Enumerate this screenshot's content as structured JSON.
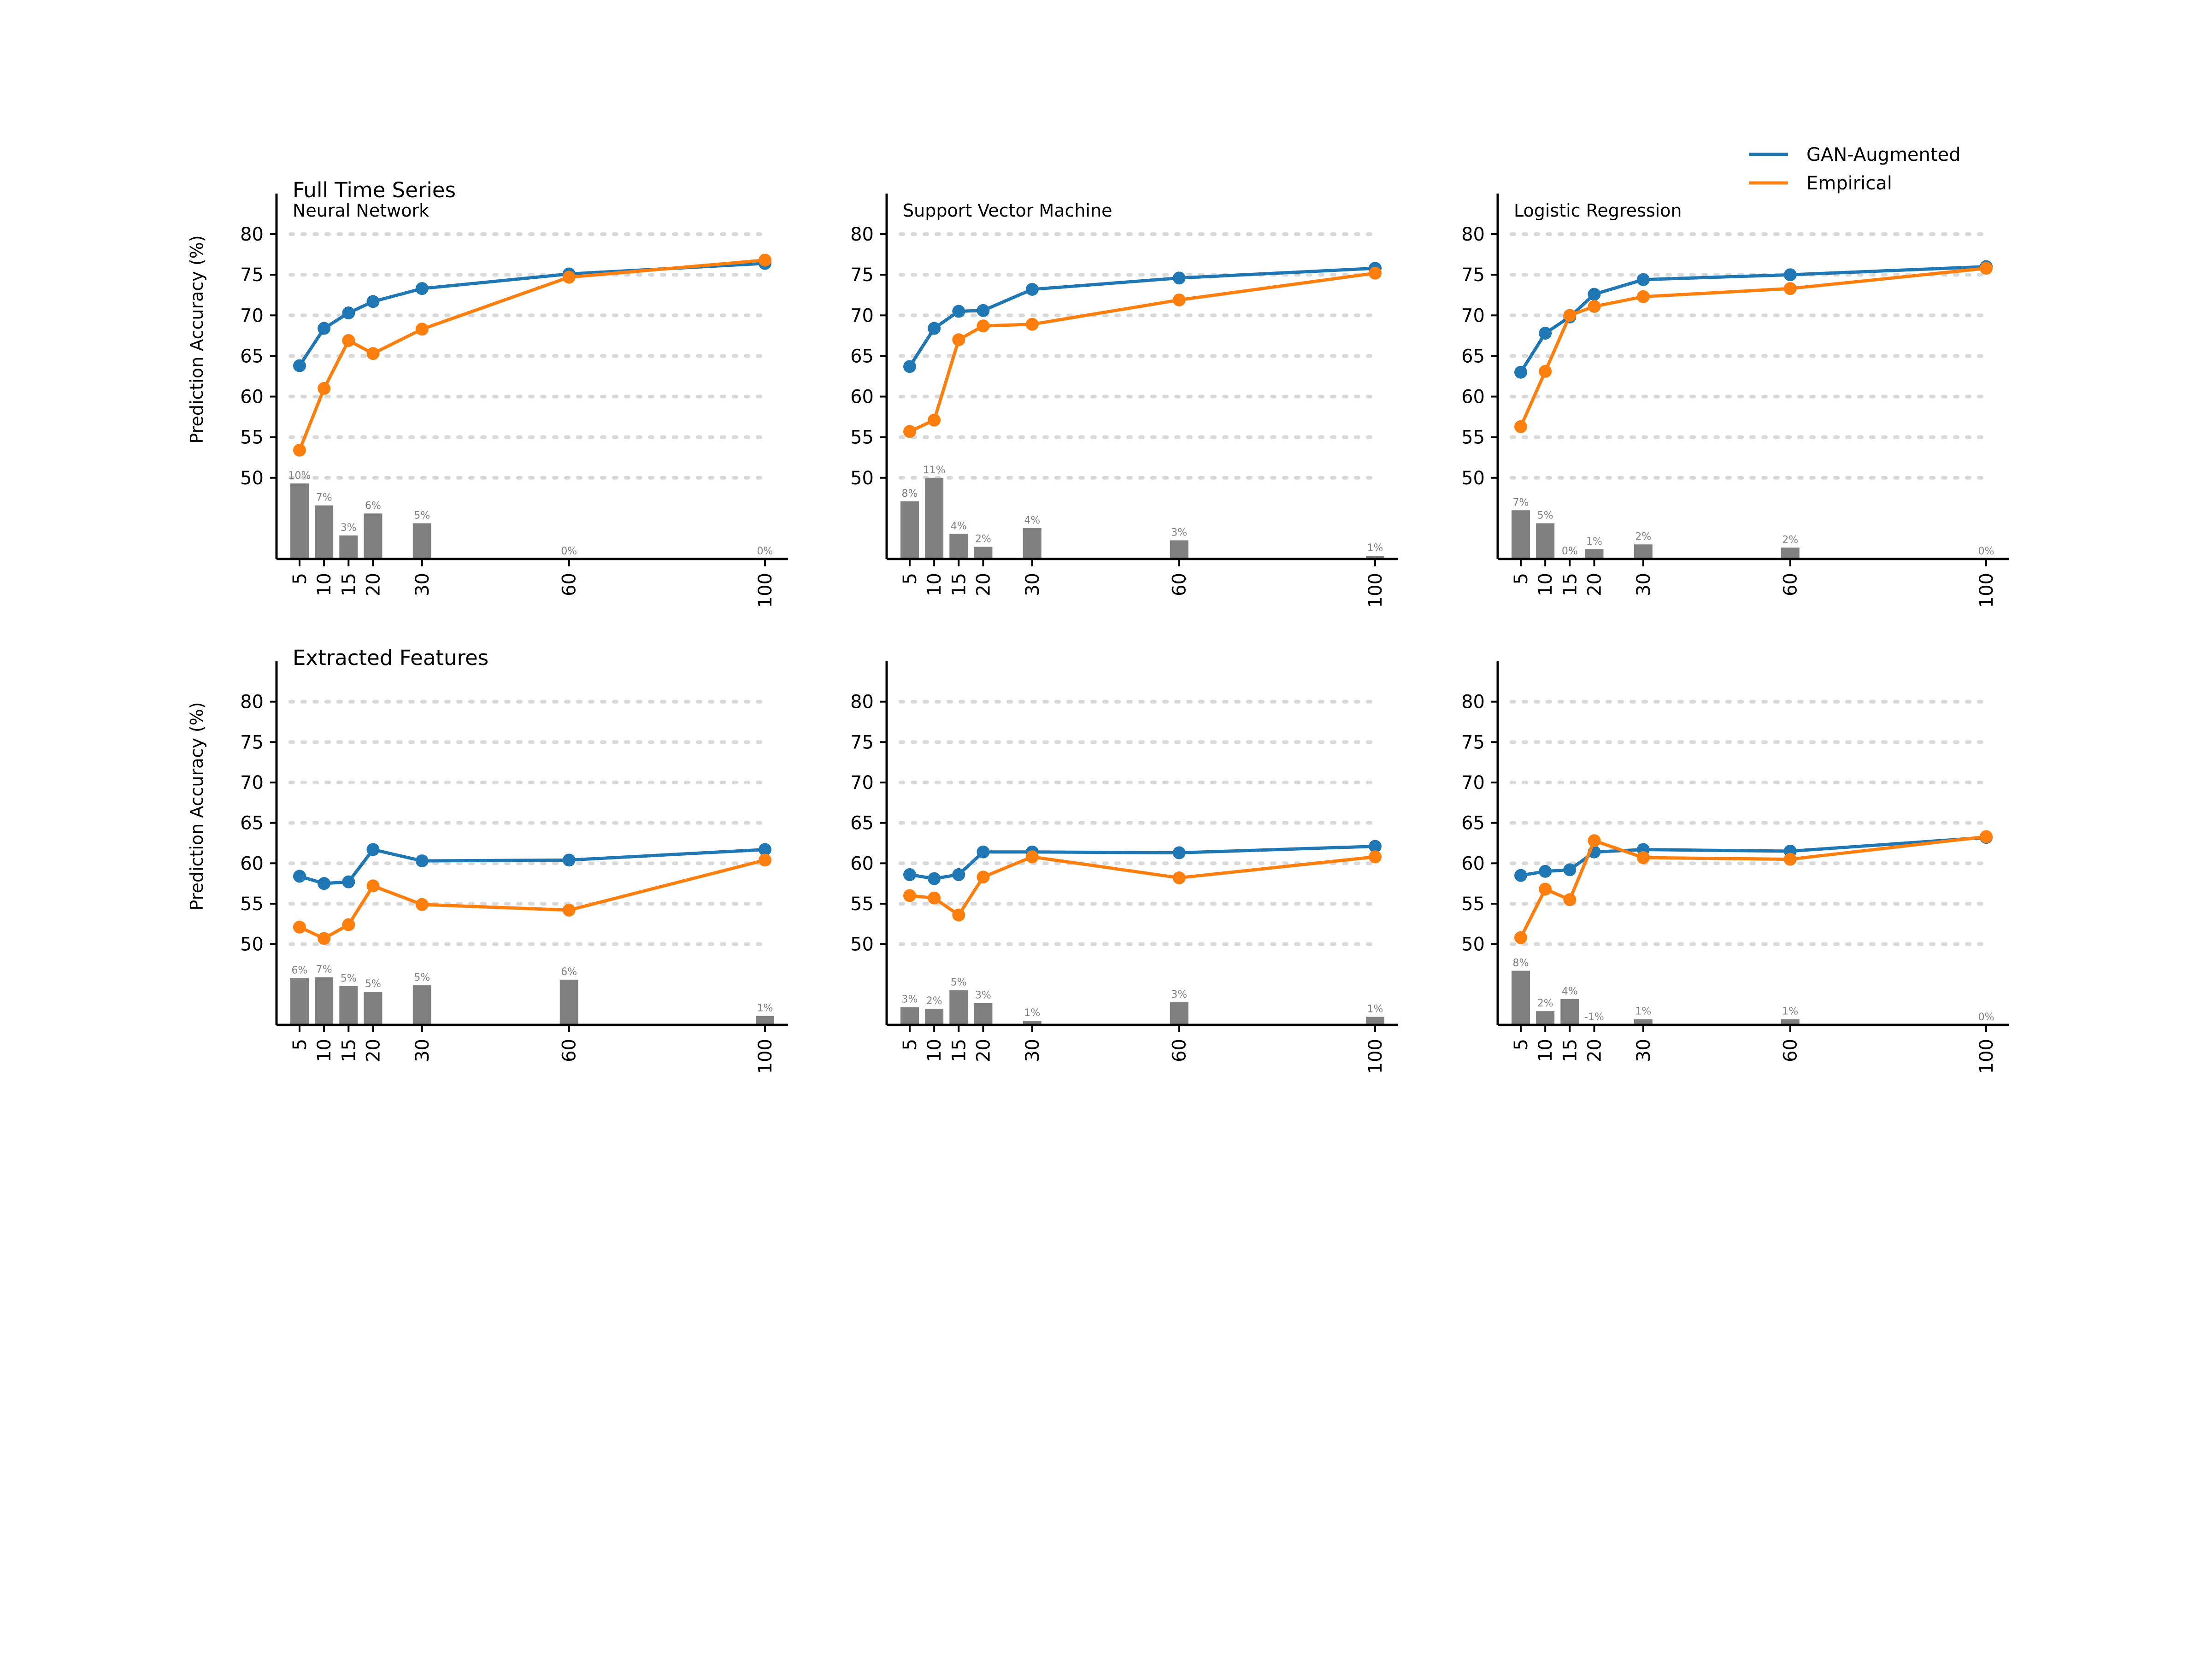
{
  "legend": {
    "placement": "top-right",
    "items": [
      {
        "label": "GAN-Augmented",
        "color": "#1f77b4"
      },
      {
        "label": "Empirical",
        "color": "#ff7f0e"
      }
    ]
  },
  "rows": [
    {
      "title": "Full Time Series",
      "ylabel": "Prediction Accuracy (%)"
    },
    {
      "title": "Extracted Features",
      "ylabel": "Prediction Accuracy (%)"
    }
  ],
  "bar_color": "#808080",
  "chart_data": [
    {
      "type": "line",
      "row": 0,
      "col": 0,
      "subtitle": "Neural Network",
      "x": [
        5,
        10,
        15,
        20,
        30,
        60,
        100
      ],
      "ylim": [
        40,
        85
      ],
      "yticks": [
        50,
        55,
        60,
        65,
        70,
        75,
        80
      ],
      "grid": true,
      "series": [
        {
          "name": "GAN-Augmented",
          "color": "#1f77b4",
          "values": [
            63.8,
            68.4,
            70.3,
            71.7,
            73.3,
            75.1,
            76.4
          ]
        },
        {
          "name": "Empirical",
          "color": "#ff7f0e",
          "values": [
            53.4,
            61.0,
            66.9,
            65.3,
            68.3,
            74.7,
            76.8
          ]
        }
      ],
      "bars": {
        "values": [
          49.3,
          46.6,
          42.9,
          45.6,
          44.4,
          40.0,
          40.0
        ],
        "labels": [
          "10%",
          "7%",
          "3%",
          "6%",
          "5%",
          "0%",
          "0%"
        ]
      }
    },
    {
      "type": "line",
      "row": 0,
      "col": 1,
      "subtitle": "Support Vector Machine",
      "x": [
        5,
        10,
        15,
        20,
        30,
        60,
        100
      ],
      "ylim": [
        40,
        85
      ],
      "yticks": [
        50,
        55,
        60,
        65,
        70,
        75,
        80
      ],
      "grid": true,
      "series": [
        {
          "name": "GAN-Augmented",
          "color": "#1f77b4",
          "values": [
            63.7,
            68.4,
            70.5,
            70.6,
            73.2,
            74.6,
            75.8
          ]
        },
        {
          "name": "Empirical",
          "color": "#ff7f0e",
          "values": [
            55.7,
            57.1,
            67.0,
            68.7,
            68.9,
            71.9,
            75.2
          ]
        }
      ],
      "bars": {
        "values": [
          47.1,
          50.0,
          43.1,
          41.5,
          43.8,
          42.3,
          40.4
        ],
        "labels": [
          "8%",
          "11%",
          "4%",
          "2%",
          "4%",
          "3%",
          "1%"
        ]
      }
    },
    {
      "type": "line",
      "row": 0,
      "col": 2,
      "subtitle": "Logistic Regression",
      "x": [
        5,
        10,
        15,
        20,
        30,
        60,
        100
      ],
      "ylim": [
        40,
        85
      ],
      "yticks": [
        50,
        55,
        60,
        65,
        70,
        75,
        80
      ],
      "grid": true,
      "series": [
        {
          "name": "GAN-Augmented",
          "color": "#1f77b4",
          "values": [
            63.0,
            67.8,
            69.8,
            72.6,
            74.4,
            75.0,
            76.0
          ]
        },
        {
          "name": "Empirical",
          "color": "#ff7f0e",
          "values": [
            56.3,
            63.1,
            70.0,
            71.1,
            72.3,
            73.3,
            75.8
          ]
        }
      ],
      "bars": {
        "values": [
          46.0,
          44.4,
          40.0,
          41.2,
          41.8,
          41.4,
          40.0
        ],
        "labels": [
          "7%",
          "5%",
          "0%",
          "1%",
          "2%",
          "2%",
          "0%"
        ]
      }
    },
    {
      "type": "line",
      "row": 1,
      "col": 0,
      "subtitle": "",
      "x": [
        5,
        10,
        15,
        20,
        30,
        60,
        100
      ],
      "ylim": [
        40,
        85
      ],
      "yticks": [
        50,
        55,
        60,
        65,
        70,
        75,
        80
      ],
      "grid": true,
      "series": [
        {
          "name": "GAN-Augmented",
          "color": "#1f77b4",
          "values": [
            58.4,
            57.5,
            57.7,
            61.7,
            60.3,
            60.4,
            61.7
          ]
        },
        {
          "name": "Empirical",
          "color": "#ff7f0e",
          "values": [
            52.1,
            50.7,
            52.4,
            57.2,
            54.9,
            54.2,
            60.4
          ]
        }
      ],
      "bars": {
        "values": [
          45.8,
          45.9,
          44.8,
          44.1,
          44.9,
          45.6,
          41.1
        ],
        "labels": [
          "6%",
          "7%",
          "5%",
          "5%",
          "5%",
          "6%",
          "1%"
        ]
      }
    },
    {
      "type": "line",
      "row": 1,
      "col": 1,
      "subtitle": "",
      "x": [
        5,
        10,
        15,
        20,
        30,
        60,
        100
      ],
      "ylim": [
        40,
        85
      ],
      "yticks": [
        50,
        55,
        60,
        65,
        70,
        75,
        80
      ],
      "grid": true,
      "series": [
        {
          "name": "GAN-Augmented",
          "color": "#1f77b4",
          "values": [
            58.6,
            58.1,
            58.6,
            61.4,
            61.4,
            61.3,
            62.1
          ]
        },
        {
          "name": "Empirical",
          "color": "#ff7f0e",
          "values": [
            56.0,
            55.7,
            53.6,
            58.3,
            60.8,
            58.2,
            60.8
          ]
        }
      ],
      "bars": {
        "values": [
          42.2,
          42.0,
          44.3,
          42.7,
          40.5,
          42.8,
          41.0
        ],
        "labels": [
          "3%",
          "2%",
          "5%",
          "3%",
          "1%",
          "3%",
          "1%"
        ]
      }
    },
    {
      "type": "line",
      "row": 1,
      "col": 2,
      "subtitle": "",
      "x": [
        5,
        10,
        15,
        20,
        30,
        60,
        100
      ],
      "ylim": [
        40,
        85
      ],
      "yticks": [
        50,
        55,
        60,
        65,
        70,
        75,
        80
      ],
      "grid": true,
      "series": [
        {
          "name": "GAN-Augmented",
          "color": "#1f77b4",
          "values": [
            58.5,
            59.0,
            59.2,
            61.4,
            61.7,
            61.5,
            63.2
          ]
        },
        {
          "name": "Empirical",
          "color": "#ff7f0e",
          "values": [
            50.8,
            56.8,
            55.5,
            62.8,
            60.7,
            60.5,
            63.3
          ]
        }
      ],
      "bars": {
        "values": [
          46.7,
          41.7,
          43.2,
          40.0,
          40.7,
          40.7,
          40.0
        ],
        "labels": [
          "8%",
          "2%",
          "4%",
          "-1%",
          "1%",
          "1%",
          "0%"
        ]
      }
    }
  ]
}
